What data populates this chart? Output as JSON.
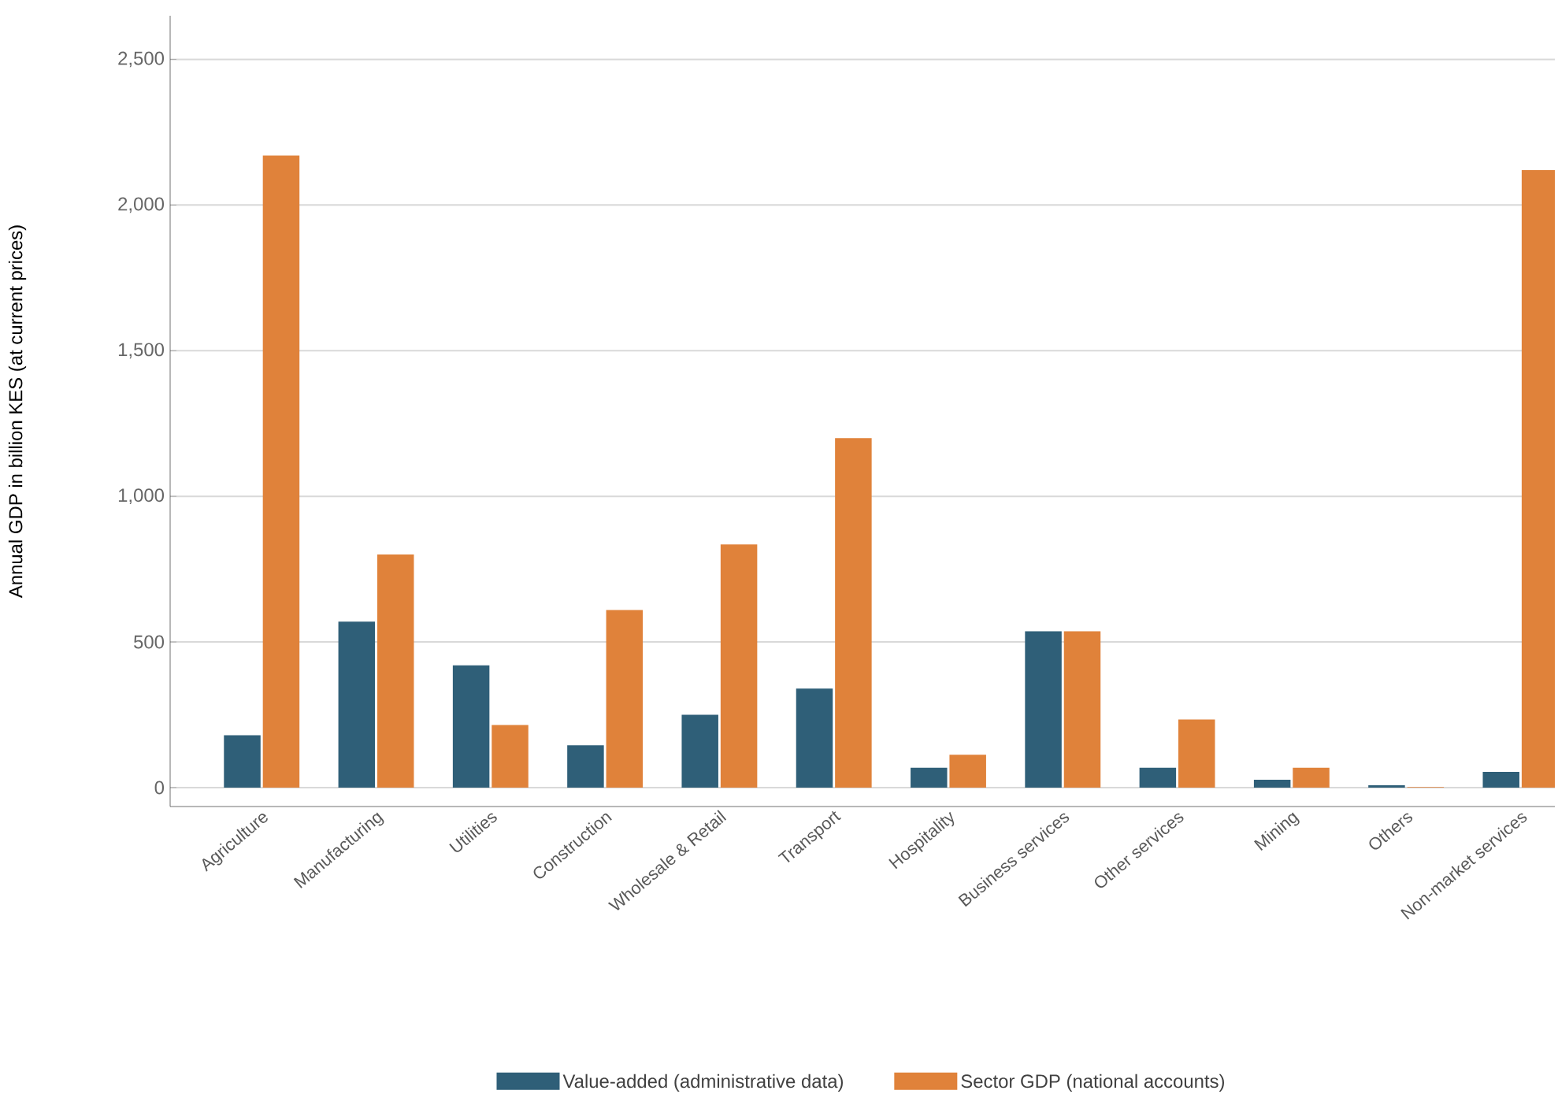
{
  "chart_data": {
    "type": "bar",
    "ylabel": "Annual GDP in billion KES (at current prices)",
    "categories": [
      "Agriculture",
      "Manufacturing",
      "Utilities",
      "Construction",
      "Wholesale & Retail",
      "Transport",
      "Hospitality",
      "Business services",
      "Other services",
      "Mining",
      "Others",
      "Non-market services"
    ],
    "series": [
      {
        "name": "Value-added (administrative data)",
        "color": "#2f5f78",
        "values": [
          180,
          570,
          420,
          145,
          250,
          340,
          68,
          537,
          68,
          27,
          8,
          54
        ]
      },
      {
        "name": "Sector GDP (national accounts)",
        "color": "#e0823a",
        "values": [
          2170,
          800,
          215,
          610,
          835,
          1200,
          113,
          537,
          234,
          68,
          2,
          2120
        ]
      }
    ],
    "ylim": [
      -65,
      2650
    ],
    "yticks": [
      0,
      500,
      {
        "value": 1000,
        "label": "1,000"
      },
      {
        "value": 1500,
        "label": "1,500"
      },
      {
        "value": 2000,
        "label": "2,000"
      },
      {
        "value": 2500,
        "label": "2,500"
      }
    ],
    "grid": "y",
    "legend": "bottom"
  }
}
